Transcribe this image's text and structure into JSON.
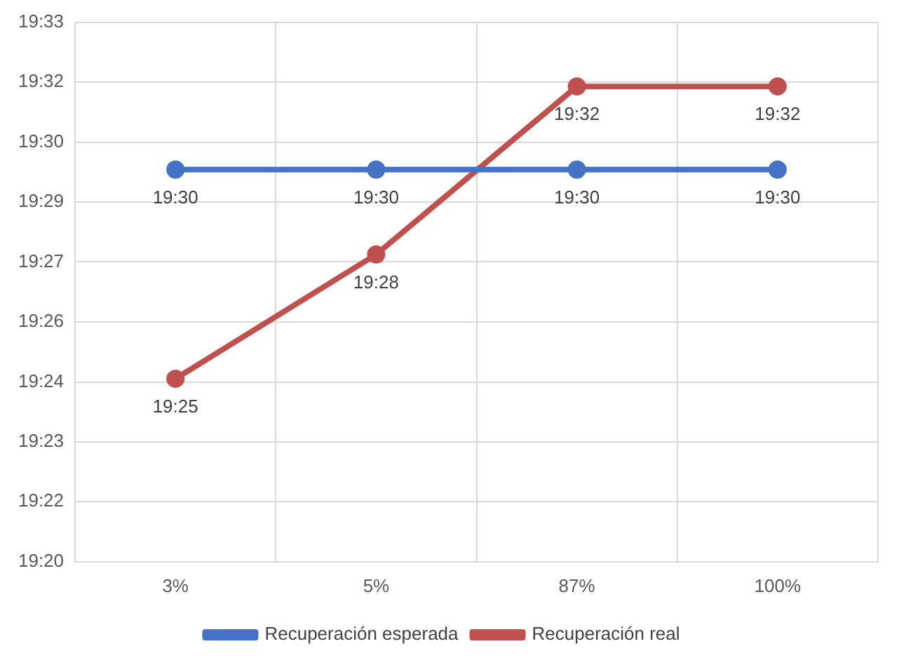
{
  "chart_data": {
    "type": "line",
    "categories": [
      "3%",
      "5%",
      "87%",
      "100%"
    ],
    "series": [
      {
        "name": "Recuperación esperada",
        "color": "#4472c4",
        "values": [
          19.4925,
          19.4925,
          19.4925,
          19.4925
        ],
        "value_labels": [
          "19:30",
          "19:30",
          "19:30",
          "19:30"
        ]
      },
      {
        "name": "Recuperación real",
        "color": "#c0504d",
        "values": [
          19.4085,
          19.4584,
          19.5259,
          19.5259
        ],
        "value_labels": [
          "19:25",
          "19:28",
          "19:32",
          "19:32"
        ]
      }
    ],
    "ylim": [
      19.335,
      19.5517
    ],
    "yticks": [
      {
        "value": 19.335,
        "label": "19:20"
      },
      {
        "value": 19.3591,
        "label": "19:22"
      },
      {
        "value": 19.3831,
        "label": "19:23"
      },
      {
        "value": 19.4072,
        "label": "19:24"
      },
      {
        "value": 19.4313,
        "label": "19:26"
      },
      {
        "value": 19.4554,
        "label": "19:27"
      },
      {
        "value": 19.4794,
        "label": "19:29"
      },
      {
        "value": 19.5035,
        "label": "19:30"
      },
      {
        "value": 19.5276,
        "label": "19:32"
      },
      {
        "value": 19.5517,
        "label": "19:33"
      }
    ],
    "grid": true,
    "legend": "bottom",
    "marker": "circle",
    "line_style": "solid"
  }
}
